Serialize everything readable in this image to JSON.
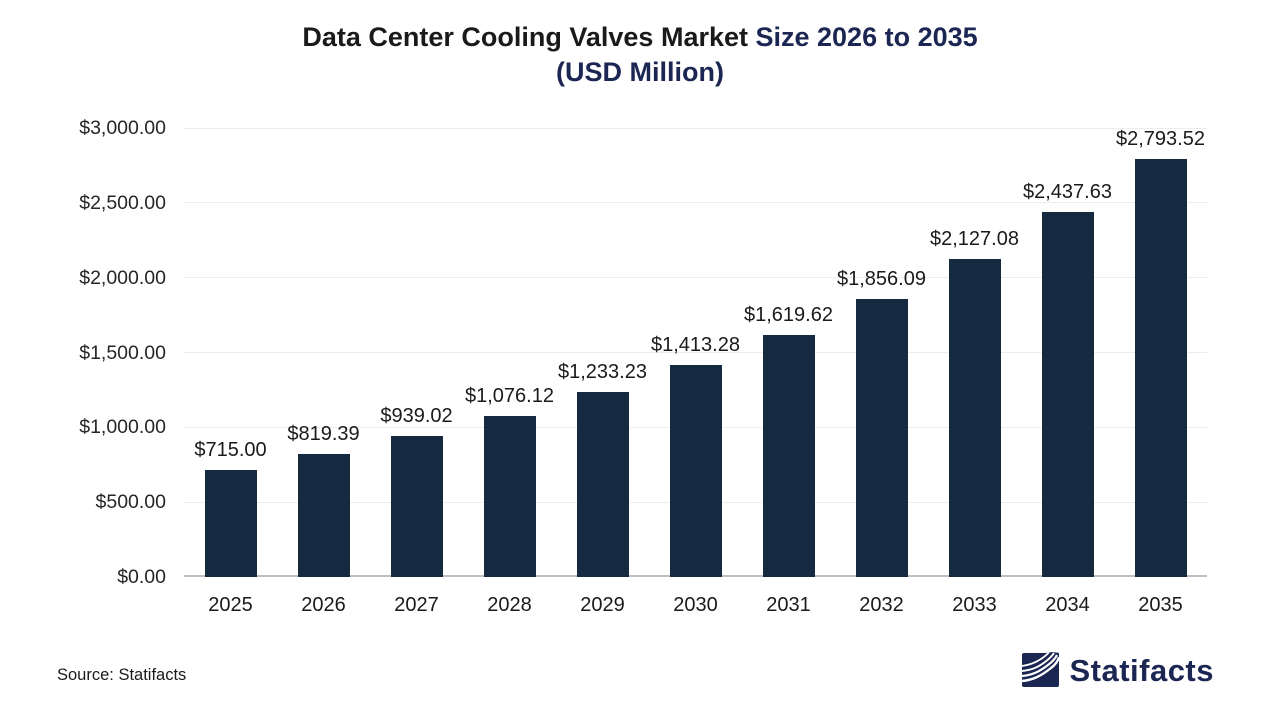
{
  "title": {
    "part1": "Data Center Cooling Valves Market ",
    "part2": "Size 2026 to 2035",
    "subtitle": "(USD Million)"
  },
  "footer": {
    "source": "Source: Statifacts",
    "brand_name": "Statifacts"
  },
  "colors": {
    "bar": "#152940",
    "title_black": "#1a1a1a",
    "title_navy": "#1b2653",
    "gridline": "#ededed",
    "axis_line": "#bfbfbf",
    "logo_navy": "#1b2653"
  },
  "chart_data": {
    "type": "bar",
    "title": "Data Center Cooling Valves Market Size 2026 to 2035 (USD Million)",
    "categories": [
      "2025",
      "2026",
      "2027",
      "2028",
      "2029",
      "2030",
      "2031",
      "2032",
      "2033",
      "2034",
      "2035"
    ],
    "values": [
      715.0,
      819.39,
      939.02,
      1076.12,
      1233.23,
      1413.28,
      1619.62,
      1856.09,
      2127.08,
      2437.63,
      2793.52
    ],
    "value_labels": [
      "$715.00",
      "$819.39",
      "$939.02",
      "$1,076.12",
      "$1,233.23",
      "$1,413.28",
      "$1,619.62",
      "$1,856.09",
      "$2,127.08",
      "$2,437.63",
      "$2,793.52"
    ],
    "xlabel": "",
    "ylabel": "",
    "ylim": [
      0,
      3000
    ],
    "ytick_step": 500,
    "ytick_labels": [
      "$0.00",
      "$500.00",
      "$1,000.00",
      "$1,500.00",
      "$2,000.00",
      "$2,500.00",
      "$3,000.00"
    ],
    "grid": true,
    "legend": false,
    "bar_color": "#152940",
    "units": "USD Million"
  }
}
